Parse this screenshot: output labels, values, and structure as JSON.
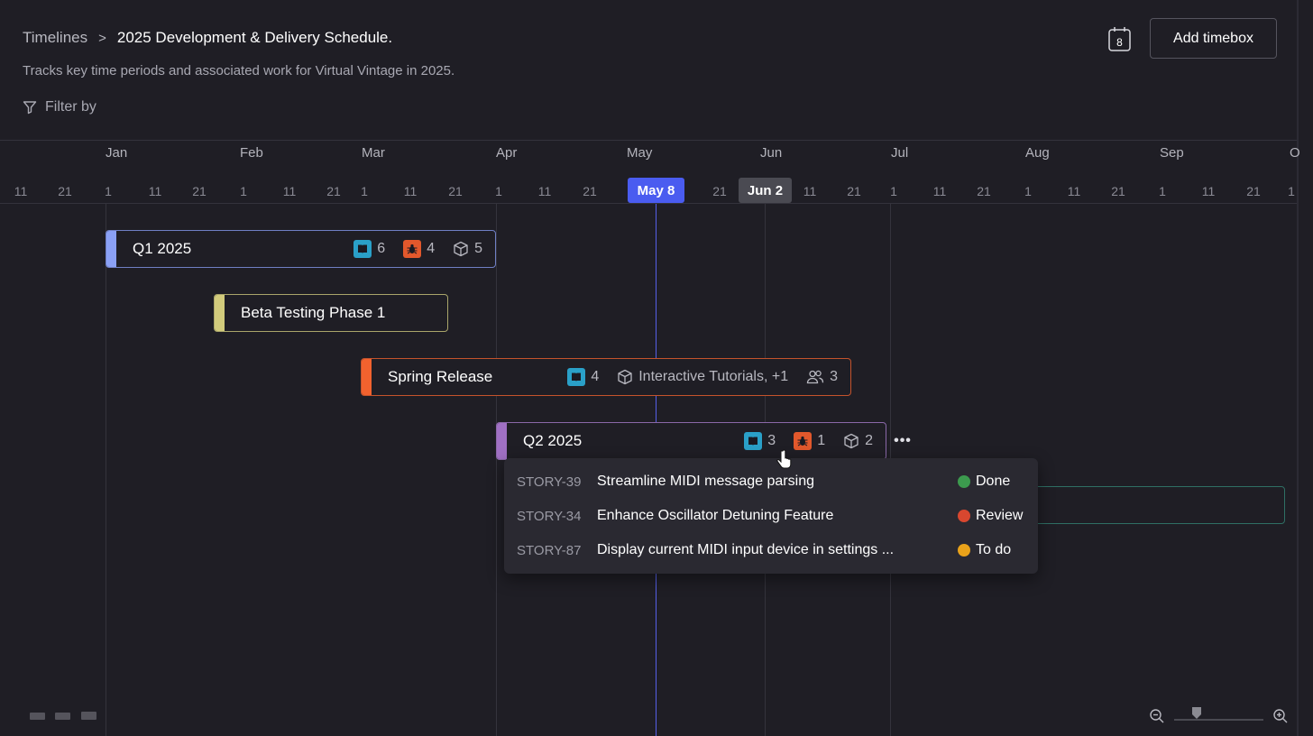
{
  "header": {
    "breadcrumb_root": "Timelines",
    "breadcrumb_sep": ">",
    "title": "2025 Development & Delivery Schedule.",
    "subtitle": "Tracks key time periods and associated work for Virtual Vintage in 2025.",
    "filter_label": "Filter by",
    "calendar_day": "8",
    "add_button": "Add timebox"
  },
  "scale": {
    "months": [
      "Jan",
      "Feb",
      "Mar",
      "Apr",
      "May",
      "Jun",
      "Jul",
      "Aug",
      "Sep",
      "O"
    ],
    "days": [
      "11",
      "21",
      "1",
      "11",
      "21",
      "1",
      "11",
      "21",
      "1",
      "11",
      "21",
      "1",
      "11",
      "21",
      "21",
      "11",
      "21",
      "1",
      "11",
      "21",
      "1",
      "11",
      "21",
      "1",
      "11",
      "21",
      "1"
    ],
    "today_label": "May 8",
    "hover_label": "Jun 2"
  },
  "timeboxes": [
    {
      "name": "Q1 2025",
      "accent": "#8aa0f5",
      "border": "#6f7fc4",
      "stats": [
        {
          "icon": "story-icon",
          "value": "6"
        },
        {
          "icon": "bug-icon",
          "value": "4"
        },
        {
          "icon": "package-icon",
          "value": "5"
        }
      ]
    },
    {
      "name": "Beta Testing Phase 1",
      "accent": "#d2cb7c",
      "border": "#a9a56a",
      "stats": []
    },
    {
      "name": "Spring Release",
      "accent": "#f2622e",
      "border": "#c4532c",
      "stats": [
        {
          "icon": "story-icon",
          "value": "4"
        },
        {
          "icon": "package-icon",
          "value": "Interactive Tutorials, +1"
        },
        {
          "icon": "users-icon",
          "value": "3"
        }
      ]
    },
    {
      "name": "Q2 2025",
      "accent": "#a070c4",
      "border": "#8a68a8",
      "stats": [
        {
          "icon": "story-icon",
          "value": "3"
        },
        {
          "icon": "bug-icon",
          "value": "1"
        },
        {
          "icon": "package-icon",
          "value": "2"
        }
      ]
    }
  ],
  "more_label": "•••",
  "popover": {
    "items": [
      {
        "key": "STORY-39",
        "title": "Streamline MIDI message parsing",
        "status": "Done",
        "status_color": "#3c9a4e"
      },
      {
        "key": "STORY-34",
        "title": "Enhance Oscillator Detuning Feature",
        "status": "Review",
        "status_color": "#d8472f"
      },
      {
        "key": "STORY-87",
        "title": "Display current MIDI input device in settings ...",
        "status": "To do",
        "status_color": "#e9a21a"
      }
    ]
  },
  "colors": {
    "story": "#2aa0c8",
    "bug": "#e2582c",
    "today": "#4a5cf0"
  }
}
